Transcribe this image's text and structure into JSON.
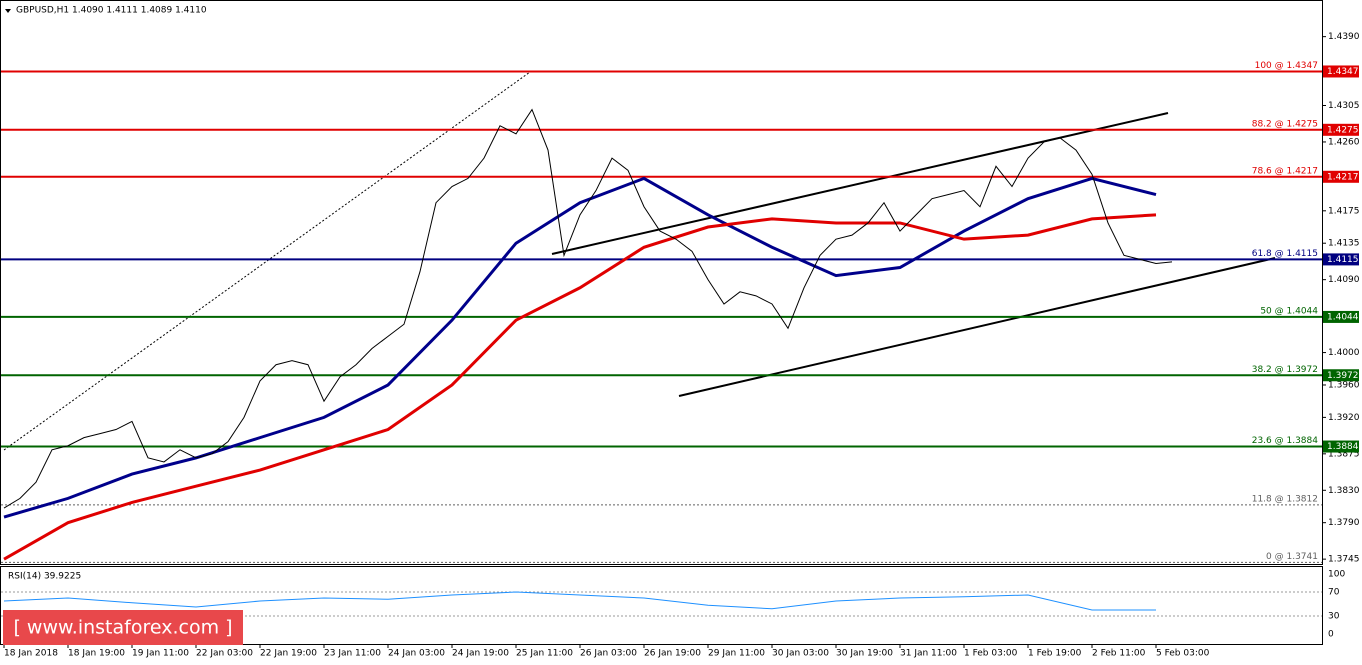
{
  "chart_data": {
    "type": "price",
    "title": "GBPUSD,H1  1.4090 1.4111 1.4089 1.4110",
    "categories": [
      "18 Jan 2018",
      "18 Jan 19:00",
      "19 Jan 11:00",
      "22 Jan 03:00",
      "22 Jan 19:00",
      "23 Jan 11:00",
      "24 Jan 03:00",
      "24 Jan 19:00",
      "25 Jan 11:00",
      "26 Jan 03:00",
      "26 Jan 19:00",
      "29 Jan 11:00",
      "30 Jan 03:00",
      "30 Jan 19:00",
      "31 Jan 11:00",
      "1 Feb 03:00",
      "1 Feb 19:00",
      "2 Feb 11:00",
      "5 Feb 03:00"
    ],
    "ylim": [
      1.3739,
      1.4434
    ],
    "yticks": [
      {
        "value": 1.439,
        "label": "1.4390"
      },
      {
        "value": 1.4305,
        "label": "1.4305"
      },
      {
        "value": 1.426,
        "label": "1.4260"
      },
      {
        "value": 1.4175,
        "label": "1.4175"
      },
      {
        "value": 1.4135,
        "label": "1.4135"
      },
      {
        "value": 1.409,
        "label": "1.4090"
      },
      {
        "value": 1.4,
        "label": "1.4000"
      },
      {
        "value": 1.396,
        "label": "1.3960"
      },
      {
        "value": 1.392,
        "label": "1.3920"
      },
      {
        "value": 1.3875,
        "label": "1.3875"
      },
      {
        "value": 1.383,
        "label": "1.3830"
      },
      {
        "value": 1.379,
        "label": "1.3790"
      },
      {
        "value": 1.3745,
        "label": "1.3745"
      }
    ],
    "price": {
      "color": "#000000",
      "values": [
        1.3808,
        1.382,
        1.384,
        1.388,
        1.3885,
        1.3895,
        1.39,
        1.3905,
        1.3915,
        1.387,
        1.3865,
        1.388,
        1.387,
        1.3875,
        1.389,
        1.392,
        1.3965,
        1.3985,
        1.399,
        1.3985,
        1.394,
        1.397,
        1.3985,
        1.4005,
        1.402,
        1.4035,
        1.41,
        1.4185,
        1.4205,
        1.4215,
        1.424,
        1.428,
        1.427,
        1.43,
        1.425,
        1.412,
        1.417,
        1.42,
        1.424,
        1.4225,
        1.418,
        1.415,
        1.414,
        1.4125,
        1.409,
        1.406,
        1.4075,
        1.407,
        1.406,
        1.403,
        1.408,
        1.412,
        1.414,
        1.4145,
        1.416,
        1.4185,
        1.415,
        1.417,
        1.419,
        1.4195,
        1.42,
        1.418,
        1.423,
        1.4205,
        1.424,
        1.426,
        1.4265,
        1.425,
        1.422,
        1.416,
        1.412,
        1.4115,
        1.411,
        1.4112
      ]
    },
    "series": [
      {
        "color": "#00008b",
        "values": [
          1.3797,
          1.382,
          1.385,
          1.387,
          1.3895,
          1.392,
          1.396,
          1.404,
          1.4135,
          1.4185,
          1.4215,
          1.417,
          1.413,
          1.4095,
          1.4105,
          1.415,
          1.419,
          1.4215,
          1.4195
        ]
      },
      {
        "color": "#e00000",
        "values": [
          1.3745,
          1.379,
          1.3815,
          1.3835,
          1.3855,
          1.388,
          1.3905,
          1.396,
          1.404,
          1.408,
          1.413,
          1.4155,
          1.4165,
          1.416,
          1.416,
          1.414,
          1.4145,
          1.4165,
          1.417
        ]
      }
    ],
    "levels": [
      {
        "label": "100 @ 1.4347",
        "value": 1.4347,
        "color": "#e00000",
        "style": "solid"
      },
      {
        "label": "88.2 @ 1.4275",
        "value": 1.4275,
        "color": "#e00000",
        "style": "solid"
      },
      {
        "label": "78.6 @ 1.4217",
        "value": 1.4217,
        "color": "#e00000",
        "style": "solid"
      },
      {
        "label": "61.8 @ 1.4115",
        "value": 1.4115,
        "color": "#000080",
        "style": "solid"
      },
      {
        "label": "50 @ 1.4044",
        "value": 1.4044,
        "color": "#006400",
        "style": "solid"
      },
      {
        "label": "38.2 @ 1.3972",
        "value": 1.3972,
        "color": "#006400",
        "style": "solid"
      },
      {
        "label": "23.6 @ 1.3884",
        "value": 1.3884,
        "color": "#006400",
        "style": "solid"
      },
      {
        "label": "11.8 @ 1.3812",
        "value": 1.3812,
        "color": "#606060",
        "style": "dashed"
      },
      {
        "label": "0 @ 1.3741",
        "value": 1.3741,
        "color": "#606060",
        "style": "dashed"
      }
    ],
    "rsi": {
      "title": "RSI(14) 39.9225",
      "color": "#1e90ff",
      "ylim": [
        0,
        100
      ],
      "yticks": [
        100,
        70,
        30,
        0
      ],
      "values": [
        55,
        60,
        52,
        45,
        55,
        60,
        58,
        65,
        70,
        65,
        60,
        48,
        42,
        55,
        60,
        62,
        65,
        40,
        39.9225
      ]
    },
    "watermark": "[ www.instaforex.com ]"
  }
}
